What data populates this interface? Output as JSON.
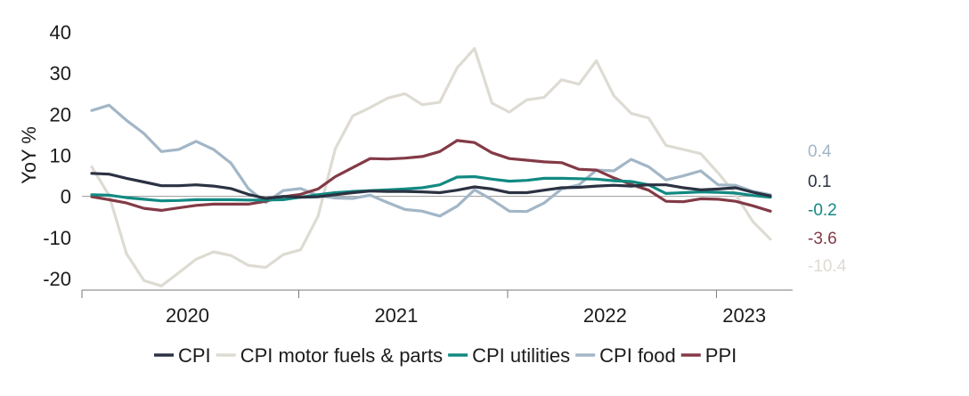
{
  "chart_data": {
    "type": "line",
    "title": "",
    "xlabel": "",
    "ylabel": "YoY %",
    "ylim": [
      -20,
      40
    ],
    "yticks": [
      -20,
      -10,
      0,
      10,
      20,
      30,
      40
    ],
    "ytick_labels": [
      "-20",
      "-10",
      "0",
      "10",
      "20",
      "30",
      "40"
    ],
    "xlim": [
      0,
      39
    ],
    "x_note": "monthly index, 0 = Jan 2020, 39 = Apr 2023",
    "year_labels": [
      {
        "label": "2020",
        "x": 5.5
      },
      {
        "label": "2021",
        "x": 17.5
      },
      {
        "label": "2022",
        "x": 29.5
      },
      {
        "label": "2023",
        "x": 37.5
      }
    ],
    "year_boundaries": [
      11.9,
      23.9,
      35.9
    ],
    "grid": false,
    "legend_position": "bottom",
    "series": [
      {
        "name": "CPI",
        "color": "#2b3242",
        "end_label": "0.1",
        "values": [
          5.6,
          5.4,
          4.4,
          3.5,
          2.6,
          2.6,
          2.8,
          2.5,
          1.9,
          0.5,
          -0.5,
          0.0,
          -0.2,
          -0.1,
          0.4,
          0.9,
          1.3,
          1.2,
          1.2,
          1.1,
          0.9,
          1.5,
          2.3,
          1.8,
          0.9,
          0.9,
          1.5,
          2.1,
          2.2,
          2.5,
          2.7,
          2.5,
          2.8,
          2.8,
          2.1,
          1.6,
          1.8,
          2.1,
          1.0,
          0.1
        ]
      },
      {
        "name": "CPI motor fuels & parts",
        "color": "#dedbd3",
        "end_label": "-10.4",
        "values": [
          7.2,
          0.2,
          -14.0,
          -20.5,
          -21.8,
          -18.6,
          -15.3,
          -13.5,
          -14.4,
          -16.8,
          -17.3,
          -14.2,
          -13.0,
          -4.9,
          11.6,
          19.6,
          21.6,
          23.9,
          25.0,
          22.3,
          22.9,
          31.3,
          36.0,
          22.7,
          20.5,
          23.5,
          24.1,
          28.4,
          27.3,
          33.0,
          24.5,
          20.2,
          19.1,
          12.4,
          11.4,
          10.4,
          5.7,
          0.5,
          -6.2,
          -10.4
        ]
      },
      {
        "name": "CPI utilities",
        "color": "#118a82",
        "end_label": "-0.2",
        "values": [
          0.4,
          0.3,
          -0.3,
          -0.7,
          -1.1,
          -1.0,
          -0.8,
          -0.8,
          -0.8,
          -0.9,
          -0.9,
          -0.8,
          -0.2,
          0.4,
          0.9,
          1.2,
          1.4,
          1.6,
          1.8,
          2.1,
          2.8,
          4.7,
          4.8,
          4.2,
          3.7,
          3.9,
          4.4,
          4.4,
          4.3,
          4.2,
          3.8,
          3.6,
          2.8,
          0.7,
          0.9,
          1.1,
          1.0,
          0.8,
          0.2,
          -0.2
        ]
      },
      {
        "name": "CPI food",
        "color": "#a2b6c7",
        "end_label": "0.4",
        "values": [
          20.9,
          22.2,
          18.5,
          15.3,
          10.9,
          11.4,
          13.4,
          11.4,
          8.1,
          1.9,
          -1.5,
          1.4,
          1.9,
          0.2,
          -0.4,
          -0.5,
          0.3,
          -1.5,
          -3.2,
          -3.6,
          -4.8,
          -2.4,
          1.6,
          -0.8,
          -3.6,
          -3.7,
          -1.6,
          1.8,
          2.8,
          6.4,
          6.2,
          9.0,
          7.2,
          4.0,
          5.0,
          6.2,
          2.8,
          2.7,
          1.2,
          0.4
        ]
      },
      {
        "name": "PPI",
        "color": "#833a46",
        "end_label": "-3.6",
        "values": [
          -0.1,
          -0.8,
          -1.6,
          -2.9,
          -3.4,
          -2.8,
          -2.2,
          -1.9,
          -1.9,
          -1.9,
          -1.2,
          -0.1,
          0.5,
          1.8,
          4.8,
          7.0,
          9.2,
          9.1,
          9.3,
          9.7,
          10.9,
          13.6,
          13.1,
          10.6,
          9.2,
          8.8,
          8.4,
          8.2,
          6.6,
          6.4,
          4.5,
          2.9,
          1.5,
          -1.2,
          -1.3,
          -0.6,
          -0.7,
          -1.2,
          -2.3,
          -3.6
        ]
      }
    ]
  }
}
